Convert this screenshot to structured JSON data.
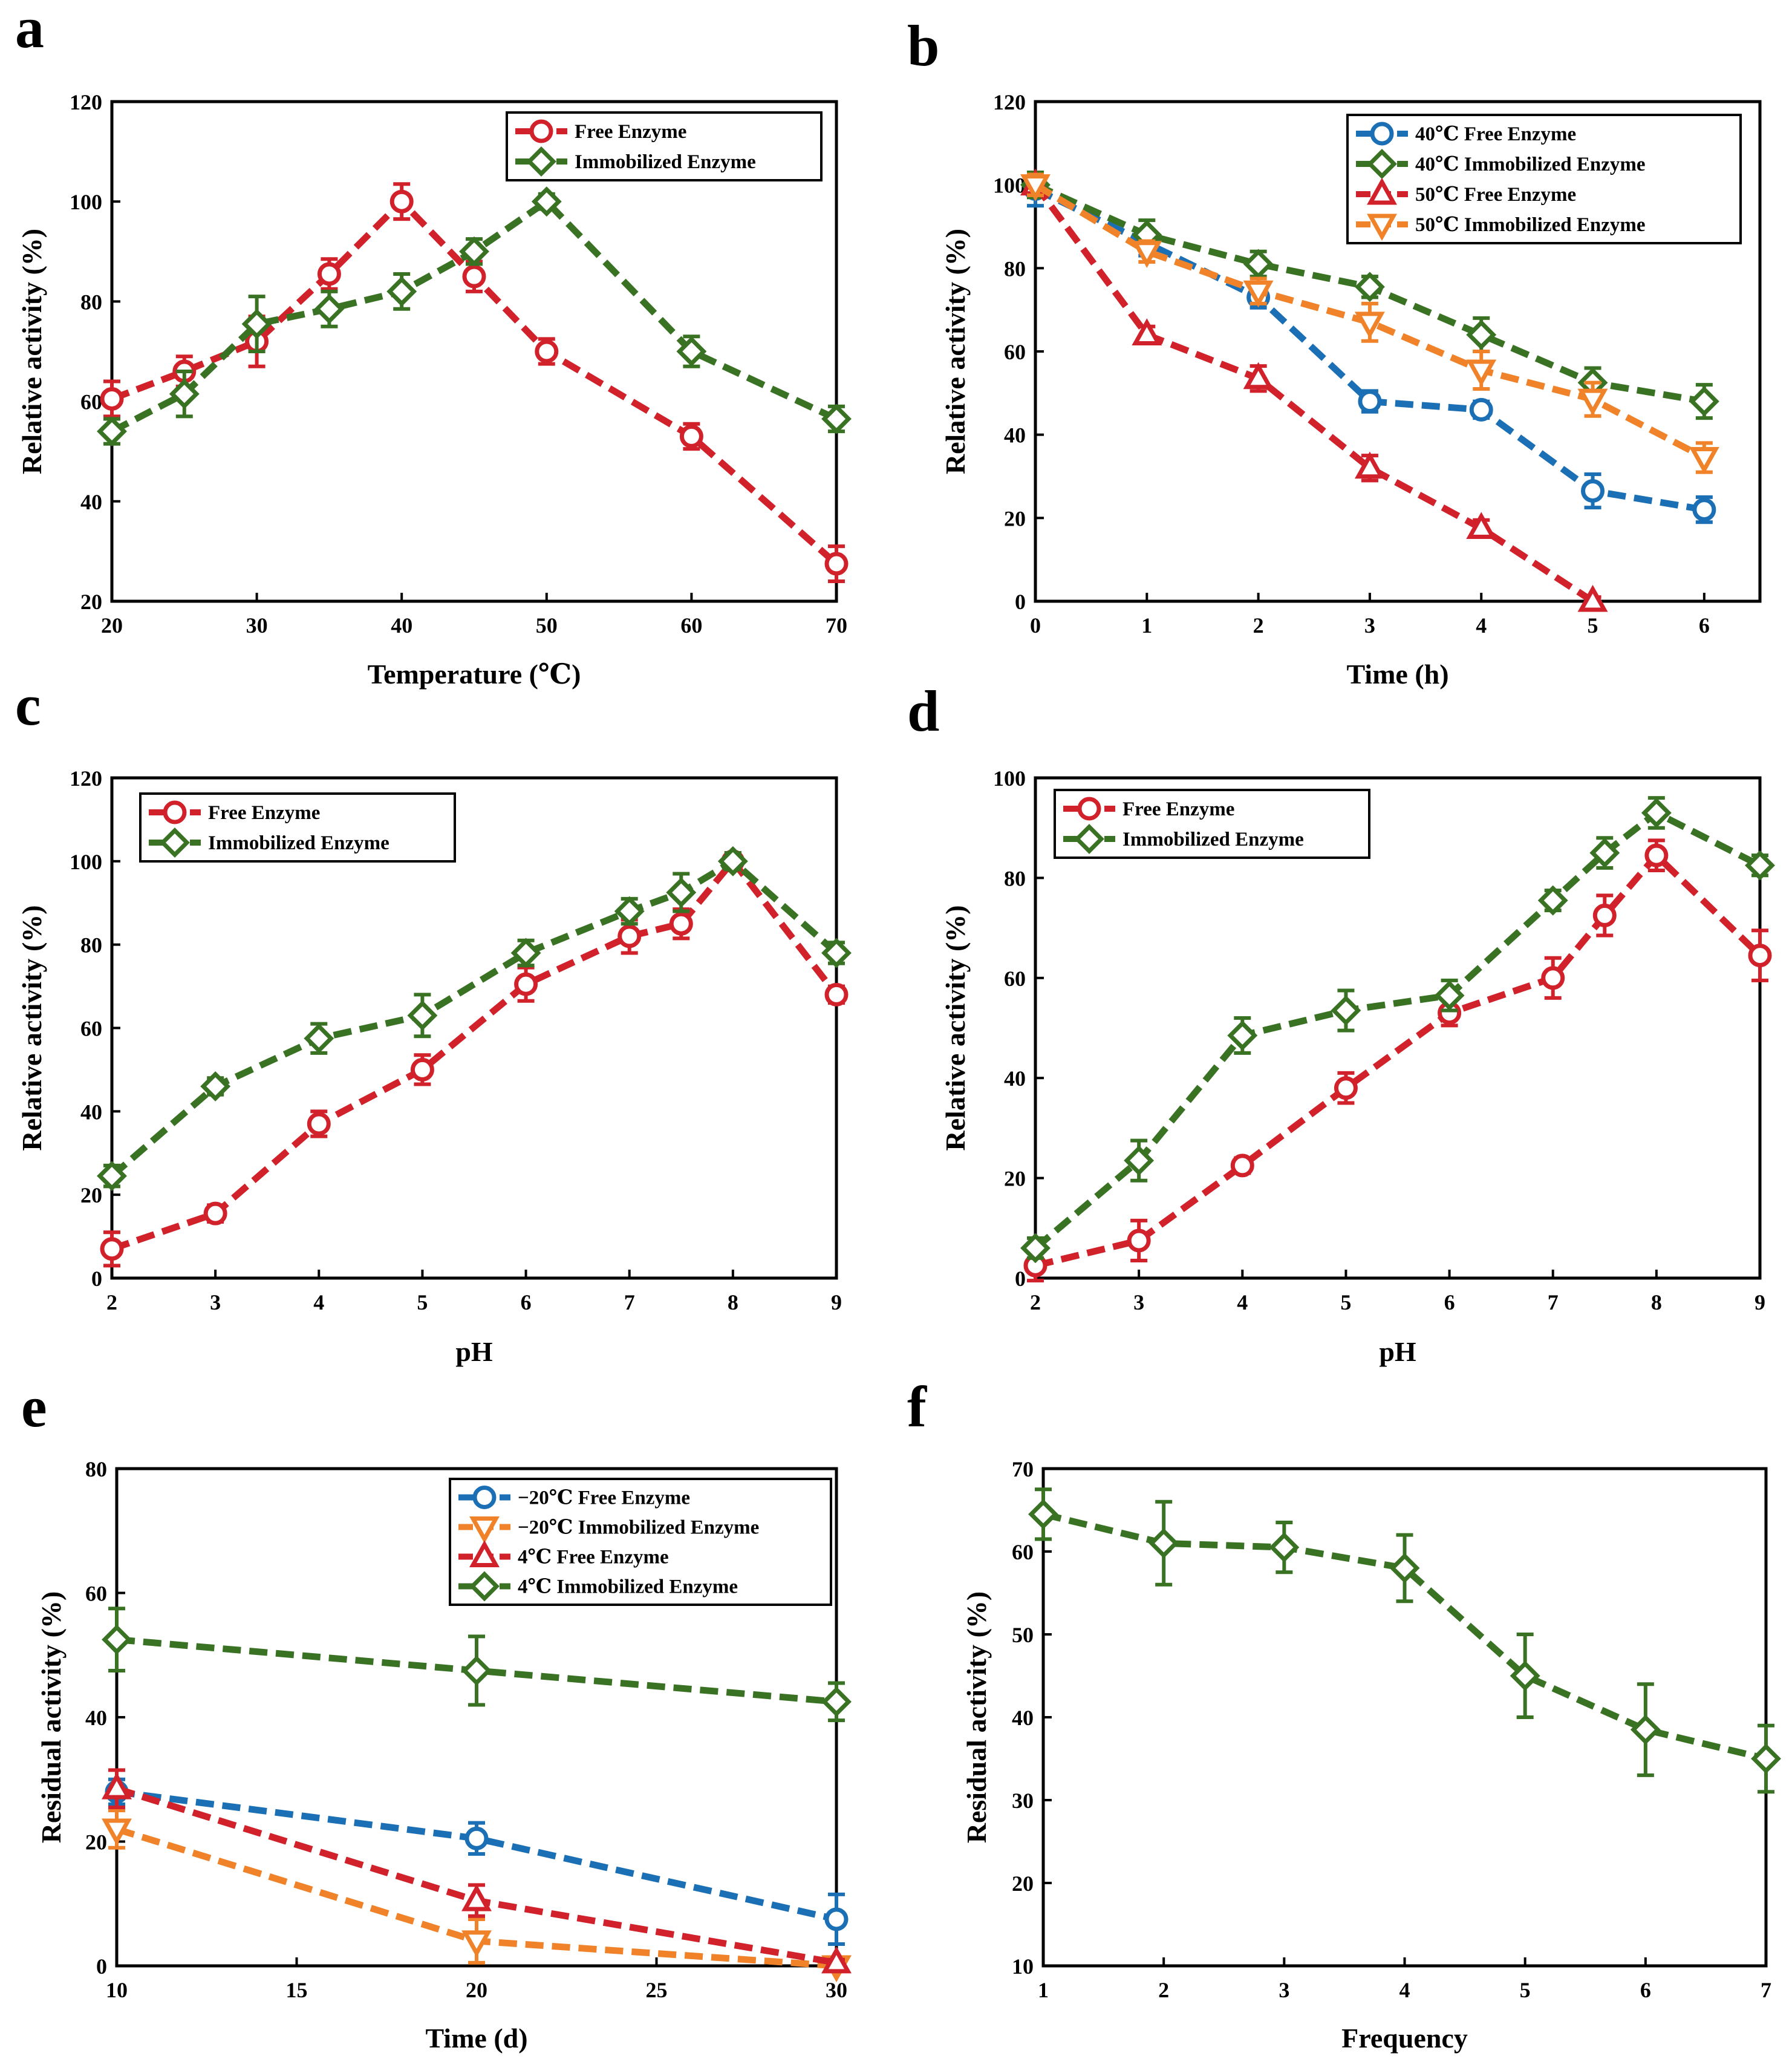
{
  "colors": {
    "red": "#D1212A",
    "green": "#3A7224",
    "blue": "#1B6FB5",
    "orange": "#F0832A"
  },
  "chart_data": [
    {
      "id": "a",
      "panel_letter": "a",
      "type": "line",
      "xlabel": "Temperature (℃)",
      "ylabel": "Relative activity (%)",
      "xlim": [
        20,
        70
      ],
      "ylim": [
        20,
        120
      ],
      "xticks": [
        20,
        30,
        40,
        50,
        60,
        70
      ],
      "yticks": [
        20,
        40,
        60,
        80,
        100,
        120
      ],
      "x_positional": false,
      "legend_loc": "top-right",
      "series": [
        {
          "name": "Free Enzyme",
          "color": "red",
          "marker": "circle",
          "x": [
            20,
            25,
            30,
            35,
            40,
            45,
            50,
            60,
            70
          ],
          "y": [
            60.5,
            66,
            72,
            85.5,
            100,
            85,
            70,
            53,
            27.5
          ],
          "err": [
            3.5,
            3,
            5,
            3,
            3.5,
            3,
            2.5,
            2.5,
            3.5
          ]
        },
        {
          "name": "Immobilized Enzyme",
          "color": "green",
          "marker": "diamond",
          "x": [
            20,
            25,
            30,
            35,
            40,
            45,
            50,
            60,
            70
          ],
          "y": [
            54,
            61.5,
            75.5,
            78.5,
            82,
            90,
            100,
            70,
            56.5
          ],
          "err": [
            2.5,
            4.5,
            5.5,
            3.5,
            3.5,
            2.5,
            1.5,
            3,
            2.5
          ]
        }
      ]
    },
    {
      "id": "b",
      "panel_letter": "b",
      "type": "line",
      "xlabel": "Time (h)",
      "ylabel": "Relative activity (%)",
      "xlim": [
        0,
        6.5
      ],
      "ylim": [
        0,
        120
      ],
      "xticks": [
        0,
        1,
        2,
        3,
        4,
        5,
        6
      ],
      "yticks": [
        0,
        20,
        40,
        60,
        80,
        100,
        120
      ],
      "x_positional": false,
      "legend_loc": "top-right",
      "series": [
        {
          "name": "40℃ Free Enzyme",
          "color": "blue",
          "marker": "circle",
          "x": [
            0,
            1,
            2,
            3,
            4,
            5,
            6
          ],
          "y": [
            99,
            86,
            73,
            48,
            46,
            26.5,
            22
          ],
          "err": [
            4,
            3,
            2.5,
            2.5,
            2,
            4,
            3
          ]
        },
        {
          "name": "40℃ Immobilized Enzyme",
          "color": "green",
          "marker": "diamond",
          "x": [
            0,
            1,
            2,
            3,
            4,
            5,
            6
          ],
          "y": [
            100,
            88,
            81,
            75.5,
            64,
            52.5,
            48
          ],
          "err": [
            3,
            3.5,
            3,
            2.5,
            4,
            3.5,
            4
          ]
        },
        {
          "name": "50℃ Free Enzyme",
          "color": "red",
          "marker": "triangle-up",
          "x": [
            0,
            1,
            2,
            3,
            4,
            5
          ],
          "y": [
            100,
            64,
            53.5,
            32,
            17.5,
            0
          ],
          "err": [
            2,
            2,
            3,
            3,
            2,
            1
          ]
        },
        {
          "name": "50℃ Immobilized Enzyme",
          "color": "orange",
          "marker": "triangle-down",
          "x": [
            0,
            1,
            2,
            3,
            4,
            5,
            6
          ],
          "y": [
            100,
            84,
            74.5,
            67,
            55.5,
            48.5,
            34.5
          ],
          "err": [
            2.5,
            2.5,
            3,
            4.5,
            4.5,
            4,
            3.5
          ]
        }
      ]
    },
    {
      "id": "c",
      "panel_letter": "c",
      "type": "line",
      "xlabel": "pH",
      "ylabel": "Relative activity (%)",
      "xlim": [
        2,
        9
      ],
      "ylim": [
        0,
        120
      ],
      "xticks": [
        2,
        3,
        4,
        5,
        6,
        7,
        8,
        9
      ],
      "yticks": [
        0,
        20,
        40,
        60,
        80,
        100,
        120
      ],
      "x_positional": false,
      "legend_loc": "top-left",
      "series": [
        {
          "name": "Free Enzyme",
          "color": "red",
          "marker": "circle",
          "x": [
            2,
            3,
            4,
            5,
            6,
            7,
            7.5,
            8,
            9
          ],
          "y": [
            7,
            15.5,
            37,
            50,
            70.5,
            82,
            85,
            100,
            68
          ],
          "err": [
            4,
            2,
            3,
            3.5,
            4,
            4,
            3.5,
            2,
            2
          ]
        },
        {
          "name": "Immobilized Enzyme",
          "color": "green",
          "marker": "diamond",
          "x": [
            2,
            3,
            4,
            5,
            6,
            7,
            7.5,
            8,
            9
          ],
          "y": [
            24.5,
            46,
            57.5,
            63,
            78,
            88,
            92.5,
            100,
            78
          ],
          "err": [
            2.5,
            2,
            3.5,
            5,
            3,
            3,
            4.5,
            2,
            2.5
          ]
        }
      ]
    },
    {
      "id": "d",
      "panel_letter": "d",
      "type": "line",
      "xlabel": "pH",
      "ylabel": "Relative activity (%)",
      "xlim": [
        2,
        9
      ],
      "ylim": [
        0,
        100
      ],
      "xticks": [
        2,
        3,
        4,
        5,
        6,
        7,
        8,
        9
      ],
      "yticks": [
        0,
        20,
        40,
        60,
        80,
        100
      ],
      "x_positional": false,
      "legend_loc": "top-left",
      "series": [
        {
          "name": "Free Enzyme",
          "color": "red",
          "marker": "circle",
          "x": [
            2,
            3,
            4,
            5,
            6,
            7,
            7.5,
            8,
            9
          ],
          "y": [
            2.5,
            7.5,
            22.5,
            38,
            53,
            60,
            72.5,
            84.5,
            64.5
          ],
          "err": [
            3,
            4,
            1.5,
            3,
            2.5,
            4,
            4,
            3,
            5
          ]
        },
        {
          "name": "Immobilized Enzyme",
          "color": "green",
          "marker": "diamond",
          "x": [
            2,
            3,
            4,
            5,
            6,
            7,
            7.5,
            8,
            9
          ],
          "y": [
            6,
            23.5,
            48.5,
            53.5,
            56.5,
            75.5,
            85,
            93,
            82.5
          ],
          "err": [
            2,
            4,
            3.5,
            4,
            3,
            2,
            3,
            3,
            2
          ]
        }
      ]
    },
    {
      "id": "e",
      "panel_letter": "e",
      "type": "line",
      "xlabel": "Time (d)",
      "ylabel": "Residual activity (%)",
      "xlim": [
        10,
        30
      ],
      "ylim": [
        0,
        80
      ],
      "xticks": [
        10,
        15,
        20,
        25,
        30
      ],
      "yticks": [
        0,
        20,
        40,
        60,
        80
      ],
      "x_positional": false,
      "legend_loc": "top-right",
      "series": [
        {
          "name": "−20℃ Free Enzyme",
          "color": "blue",
          "marker": "circle",
          "x": [
            10,
            20,
            30
          ],
          "y": [
            28,
            20.5,
            7.5
          ],
          "err": [
            2,
            2.5,
            4
          ]
        },
        {
          "name": "−20℃ Immobilized Enzyme",
          "color": "orange",
          "marker": "triangle-down",
          "x": [
            10,
            20,
            30
          ],
          "y": [
            22,
            4,
            0
          ],
          "err": [
            3,
            3.5,
            0.5
          ]
        },
        {
          "name": "4℃ Free Enzyme",
          "color": "red",
          "marker": "triangle-up",
          "x": [
            10,
            20,
            30
          ],
          "y": [
            28.5,
            10.5,
            0.5
          ],
          "err": [
            3,
            2.5,
            0.5
          ]
        },
        {
          "name": "4℃ Immobilized Enzyme",
          "color": "green",
          "marker": "diamond",
          "x": [
            10,
            20,
            30
          ],
          "y": [
            52.5,
            47.5,
            42.5
          ],
          "err": [
            5,
            5.5,
            3
          ]
        }
      ]
    },
    {
      "id": "f",
      "panel_letter": "f",
      "type": "line",
      "xlabel": "Frequency",
      "ylabel": "Residual activity (%)",
      "xlim": [
        1,
        7
      ],
      "ylim": [
        10,
        70
      ],
      "xticks": [
        1,
        2,
        3,
        4,
        5,
        6,
        7
      ],
      "yticks": [
        10,
        20,
        30,
        40,
        50,
        60,
        70
      ],
      "x_positional": false,
      "legend_loc": "none",
      "series": [
        {
          "name": "",
          "color": "green",
          "marker": "diamond",
          "x": [
            1,
            2,
            3,
            4,
            5,
            6,
            7
          ],
          "y": [
            64.5,
            61,
            60.5,
            58,
            45,
            38.5,
            35
          ],
          "err": [
            3,
            5,
            3,
            4,
            5,
            5.5,
            4
          ]
        }
      ]
    }
  ]
}
